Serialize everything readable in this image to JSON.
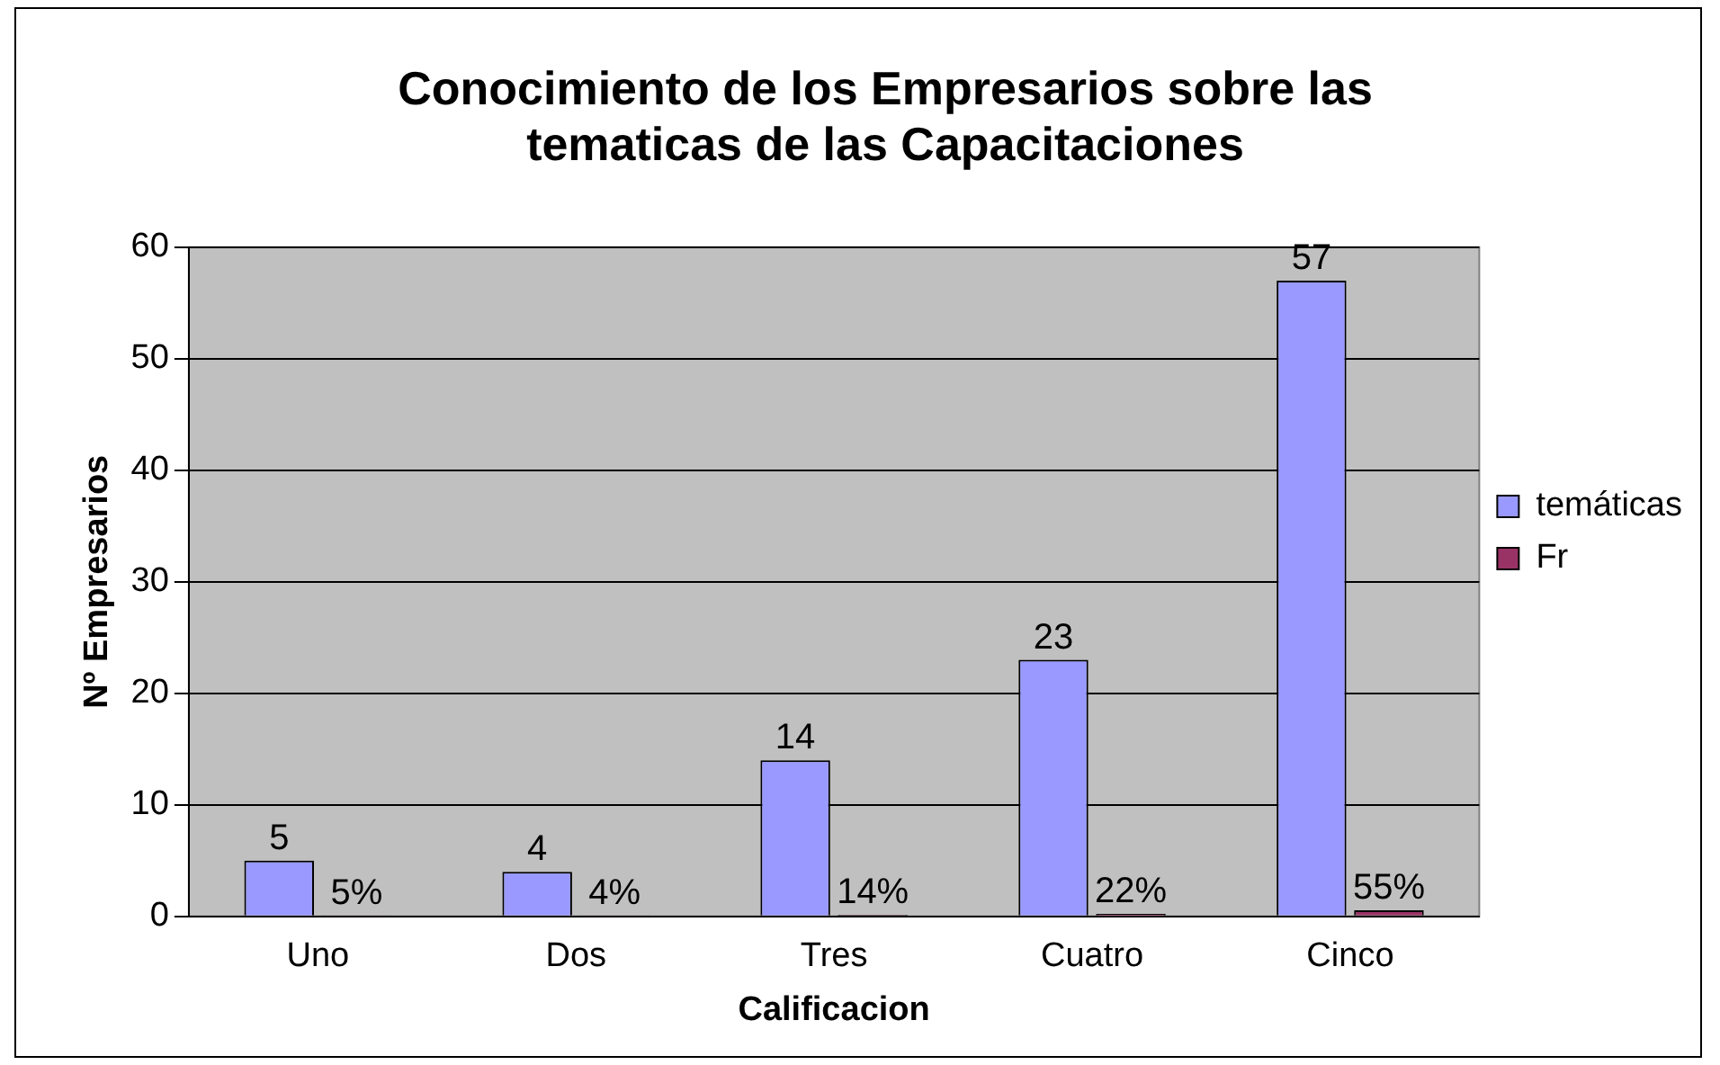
{
  "chart_data": {
    "type": "bar",
    "title": "Conocimiento de los Empresarios sobre las tematicas de las Capacitaciones",
    "xlabel": "Calificacion",
    "ylabel": "Nº Empresarios",
    "categories": [
      "Uno",
      "Dos",
      "Tres",
      "Cuatro",
      "Cinco"
    ],
    "series": [
      {
        "name": "temáticas",
        "color": "#9999ff",
        "values": [
          5,
          4,
          14,
          23,
          57
        ],
        "value_labels": [
          "5",
          "4",
          "14",
          "23",
          "57"
        ]
      },
      {
        "name": "Fr",
        "color": "#993366",
        "values": [
          0.05,
          0.04,
          0.14,
          0.22,
          0.55
        ],
        "value_labels": [
          "5%",
          "4%",
          "14%",
          "22%",
          "55%"
        ]
      }
    ],
    "ylim": [
      0,
      60
    ],
    "yticks": [
      0,
      10,
      20,
      30,
      40,
      50,
      60
    ],
    "grid": "y",
    "legend": "right"
  }
}
